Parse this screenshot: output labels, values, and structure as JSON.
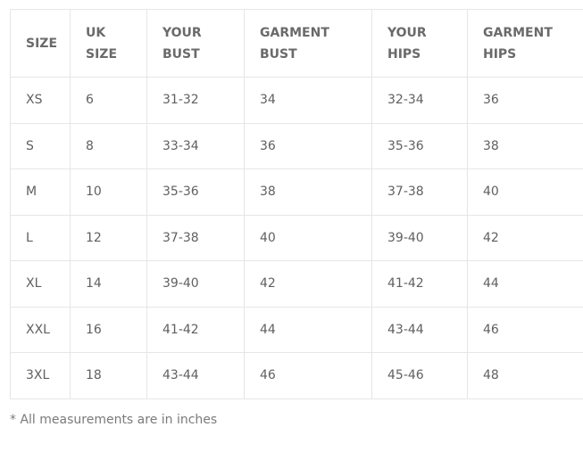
{
  "table": {
    "headers": [
      "SIZE",
      "UK SIZE",
      "YOUR BUST",
      "GARMENT BUST",
      "YOUR HIPS",
      "GARMENT HIPS"
    ],
    "rows": [
      [
        "XS",
        "6",
        "31-32",
        "34",
        "32-34",
        "36"
      ],
      [
        "S",
        "8",
        "33-34",
        "36",
        "35-36",
        "38"
      ],
      [
        "M",
        "10",
        "35-36",
        "38",
        "37-38",
        "40"
      ],
      [
        "L",
        "12",
        "37-38",
        "40",
        "39-40",
        "42"
      ],
      [
        "XL",
        "14",
        "39-40",
        "42",
        "41-42",
        "44"
      ],
      [
        "XXL",
        "16",
        "41-42",
        "44",
        "43-44",
        "46"
      ],
      [
        "3XL",
        "18",
        "43-44",
        "46",
        "45-46",
        "48"
      ]
    ]
  },
  "note": "* All measurements are in inches"
}
